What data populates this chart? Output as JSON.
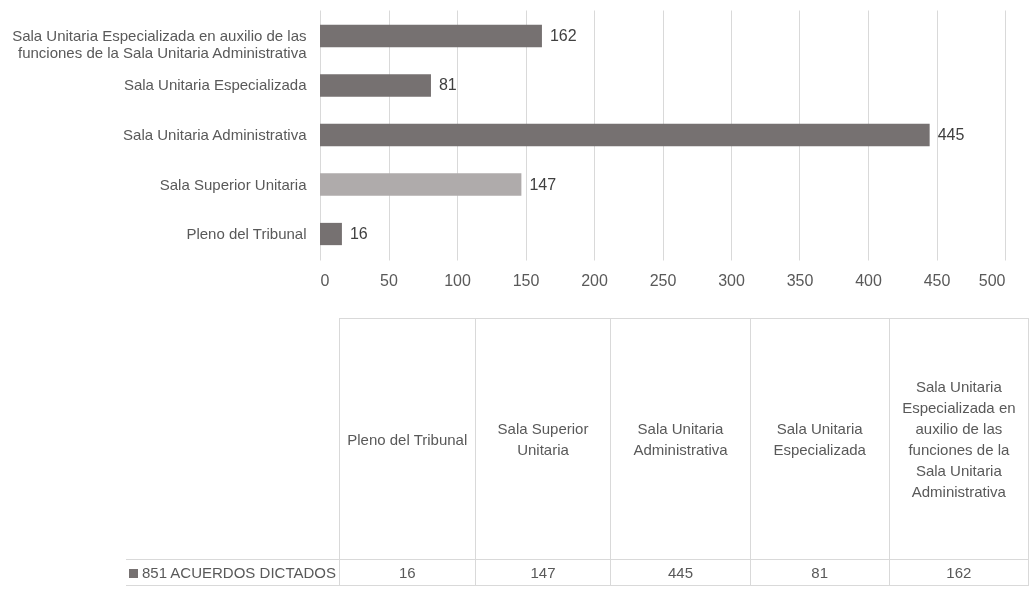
{
  "chart_data": {
    "type": "bar",
    "orientation": "horizontal",
    "categories": [
      "Sala Unitaria Especializada en auxilio de las funciones de la Sala Unitaria Administrativa",
      "Sala Unitaria Especializada",
      "Sala Unitaria Administrativa",
      "Sala Superior Unitaria",
      "Pleno del Tribunal"
    ],
    "series": [
      {
        "name": "851 ACUERDOS DICTADOS",
        "color": "#767171",
        "colors": [
          "#767171",
          "#767171",
          "#767171",
          "#afabab",
          "#767171"
        ],
        "values": [
          162,
          81,
          445,
          147,
          16
        ]
      }
    ],
    "annotations": [
      "16",
      "147",
      "445",
      "81",
      "162"
    ],
    "xlim": [
      0,
      500
    ],
    "xticks": [
      0,
      50,
      100,
      150,
      200,
      250,
      300,
      350,
      400,
      450,
      500
    ],
    "grid": "x",
    "legend": "bottom",
    "data_labels": true
  }
}
